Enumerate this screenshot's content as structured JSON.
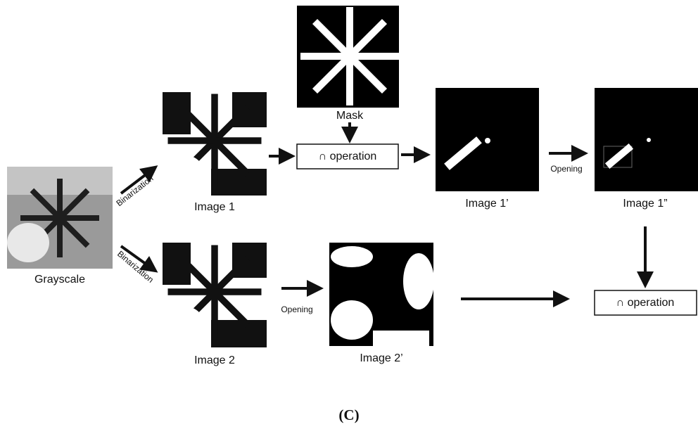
{
  "nodes": [
    {
      "label": "Grayscale"
    },
    {
      "label": "Image 1"
    },
    {
      "label": "Image 2"
    },
    {
      "label": "Mask"
    },
    {
      "label": "∩ operation"
    },
    {
      "label": "Image 1’"
    },
    {
      "label": "Image 1”"
    },
    {
      "label": "Image 2’"
    },
    {
      "label": "∩ operation"
    }
  ],
  "edges": [
    {
      "label": "Binarization"
    },
    {
      "label": "Binarization"
    },
    {
      "label": "Opening"
    },
    {
      "label": "Opening"
    }
  ],
  "caption": "(C)"
}
